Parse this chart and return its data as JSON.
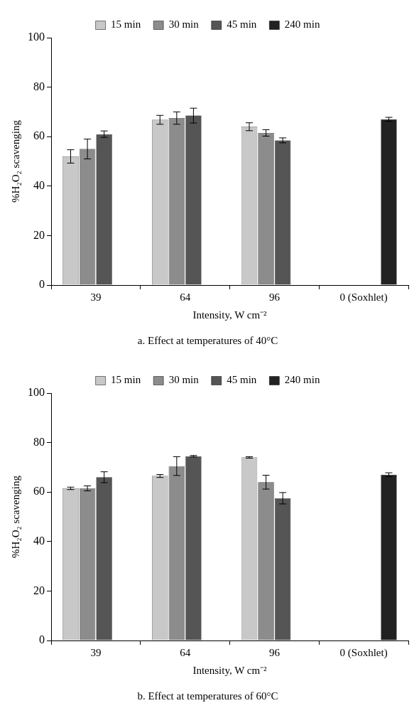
{
  "chart_data": [
    {
      "type": "bar",
      "title": "a. Effect at temperatures of 40°C",
      "xlabel": "Intensity, W cm⁻²",
      "ylabel": "%H₂O₂ scavenging",
      "categories": [
        "39",
        "64",
        "96",
        "0 (Soxhlet)"
      ],
      "ylim": [
        0,
        100
      ],
      "yticks": [
        0,
        20,
        40,
        60,
        80,
        100
      ],
      "grid": false,
      "legend": "top",
      "series": [
        {
          "name": "15 min",
          "color": "#c8c8c8",
          "values": [
            52,
            66.8,
            64,
            null
          ],
          "errors": [
            2.7,
            1.8,
            1.6,
            null
          ]
        },
        {
          "name": "30 min",
          "color": "#8c8c8c",
          "values": [
            55,
            67.5,
            61.5,
            null
          ],
          "errors": [
            4,
            2.5,
            1.3,
            null
          ]
        },
        {
          "name": "45 min",
          "color": "#555555",
          "values": [
            61,
            68.5,
            58.5,
            null
          ],
          "errors": [
            1.3,
            3,
            1,
            null
          ]
        },
        {
          "name": "240 min",
          "color": "#222222",
          "values": [
            null,
            null,
            null,
            67
          ],
          "errors": [
            null,
            null,
            null,
            0.8
          ]
        }
      ]
    },
    {
      "type": "bar",
      "title": "b. Effect at temperatures of 60°C",
      "xlabel": "Intensity, W cm⁻²",
      "ylabel": "%H₂O₂ scavenging",
      "categories": [
        "39",
        "64",
        "96",
        "0 (Soxhlet)"
      ],
      "ylim": [
        0,
        100
      ],
      "yticks": [
        0,
        20,
        40,
        60,
        80,
        100
      ],
      "grid": false,
      "legend": "top",
      "series": [
        {
          "name": "15 min",
          "color": "#c8c8c8",
          "values": [
            61.5,
            66.5,
            74,
            null
          ],
          "errors": [
            0.5,
            0.6,
            0.3,
            null
          ]
        },
        {
          "name": "30 min",
          "color": "#8c8c8c",
          "values": [
            61.5,
            70.5,
            64,
            null
          ],
          "errors": [
            1,
            3.8,
            2.8,
            null
          ]
        },
        {
          "name": "45 min",
          "color": "#555555",
          "values": [
            66,
            74.5,
            57.5,
            null
          ],
          "errors": [
            2.2,
            0.3,
            2.3,
            null
          ]
        },
        {
          "name": "240 min",
          "color": "#222222",
          "values": [
            null,
            null,
            null,
            67
          ],
          "errors": [
            null,
            null,
            null,
            0.8
          ]
        }
      ]
    }
  ]
}
